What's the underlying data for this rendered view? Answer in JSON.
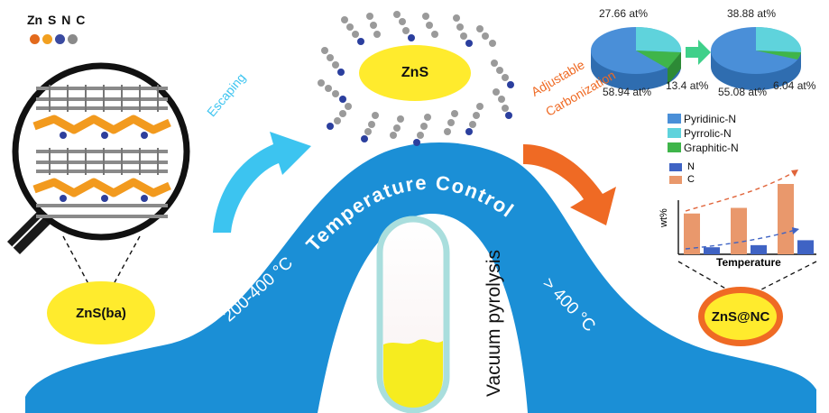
{
  "elements": {
    "label": "Zn S N C",
    "colors": [
      "#e36a1c",
      "#f2a020",
      "#3a4aa0",
      "#8a8a8a"
    ]
  },
  "stage_left": {
    "label": "ZnS(ba)"
  },
  "stage_top": {
    "label": "ZnS"
  },
  "stage_right": {
    "label": "ZnS@NC"
  },
  "arrows": {
    "escaping": "Escaping",
    "adjustable_line1": "Adjustable",
    "adjustable_line2": "Carbonization"
  },
  "curve": {
    "title": "Temperature Control",
    "low_temp": "200-400 °C",
    "high_temp": "> 400 °C"
  },
  "tube": {
    "label": "Vacuum pyrolysis"
  },
  "pie_before": {
    "labels": [
      "27.66 at%",
      "58.94 at%",
      "13.4 at%"
    ],
    "values": [
      27.66,
      58.94,
      13.4
    ]
  },
  "pie_after": {
    "labels": [
      "38.88 at%",
      "55.08 at%",
      "6.04 at%"
    ],
    "values": [
      38.88,
      55.08,
      6.04
    ]
  },
  "pie_legend": [
    {
      "name": "Pyridinic-N",
      "color": "#4a8fd8"
    },
    {
      "name": "Pyrrolic-N",
      "color": "#5fd3dc"
    },
    {
      "name": "Graphitic-N",
      "color": "#3fb54a"
    }
  ],
  "chart_data": {
    "type": "bar",
    "xlabel": "Temperature",
    "ylabel": "wt%",
    "categories": [
      "",
      "",
      ""
    ],
    "series": [
      {
        "name": "C",
        "values": [
          0.58,
          0.66,
          1.0
        ],
        "color": "#e9986c"
      },
      {
        "name": "N",
        "values": [
          0.1,
          0.13,
          0.2
        ],
        "color": "#3f63c4"
      }
    ]
  }
}
